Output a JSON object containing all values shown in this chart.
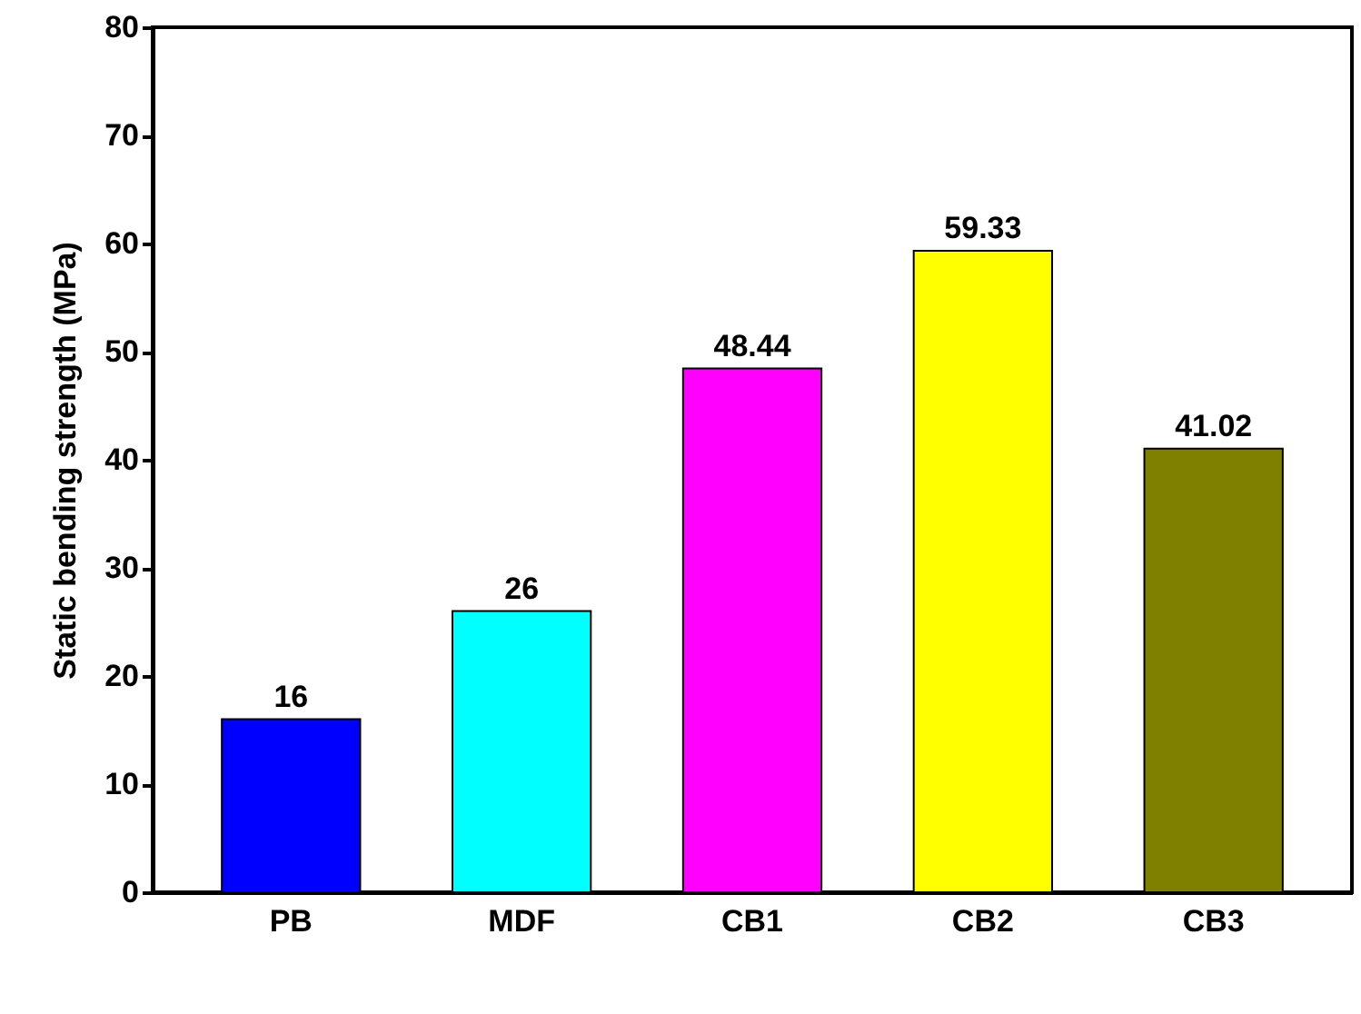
{
  "chart_data": {
    "type": "bar",
    "ylabel": "Static bending strength (MPa)",
    "categories": [
      "PB",
      "MDF",
      "CB1",
      "CB2",
      "CB3"
    ],
    "values": [
      16,
      26,
      48.44,
      59.33,
      41.02
    ],
    "colors": [
      "#0000ff",
      "#00ffff",
      "#ff00ff",
      "#ffff00",
      "#808000"
    ],
    "ylim": [
      0,
      80
    ],
    "yticks": [
      0,
      10,
      20,
      30,
      40,
      50,
      60,
      70,
      80
    ],
    "data_labels": true
  }
}
